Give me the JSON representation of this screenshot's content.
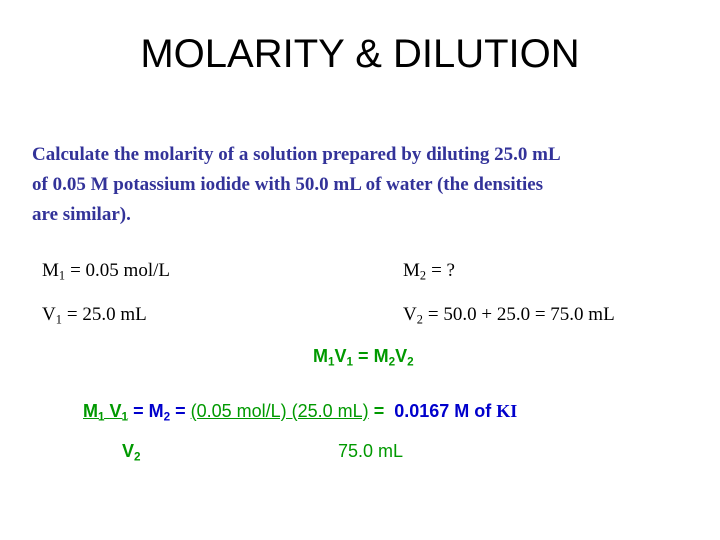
{
  "title": "MOLARITY & DILUTION",
  "problem": {
    "lines": [
      "Calculate the molarity of a solution prepared by diluting 25.0 mL",
      "of 0.05 M potassium iodide with 50.0 mL of water (the densities",
      "are similar)."
    ]
  },
  "givens": [
    {
      "base": "M",
      "sub": "1",
      "rest": "= 0.05 mol/L"
    },
    {
      "base": "M",
      "sub": "2",
      "rest": "= ?"
    },
    {
      "base": "V",
      "sub": "1",
      "rest": "= 25.0 mL"
    },
    {
      "base": "V",
      "sub": "2",
      "rest": "= 50.0 + 25.0 = 75.0 mL"
    }
  ],
  "equation": {
    "left": [
      {
        "base": "M",
        "sub": "1"
      },
      {
        "base": "V",
        "sub": "1"
      }
    ],
    "sign": "=",
    "right": [
      {
        "base": "M",
        "sub": "2"
      },
      {
        "base": "V",
        "sub": "2"
      }
    ]
  },
  "solution": {
    "lhs_numerator": [
      {
        "base": "M",
        "sub": "1"
      },
      {
        "base": "V",
        "sub": "1"
      }
    ],
    "eq1": "=",
    "m2": {
      "base": "M",
      "sub": "2"
    },
    "eq2": "=",
    "numerator": "(0.05 mol/L) (25.0 mL)",
    "eq3": "=",
    "answer": "0.0167 M of",
    "formula": "KI",
    "lhs_denominator": {
      "base": "V",
      "sub": "2"
    },
    "denominator": "75.0 mL"
  }
}
